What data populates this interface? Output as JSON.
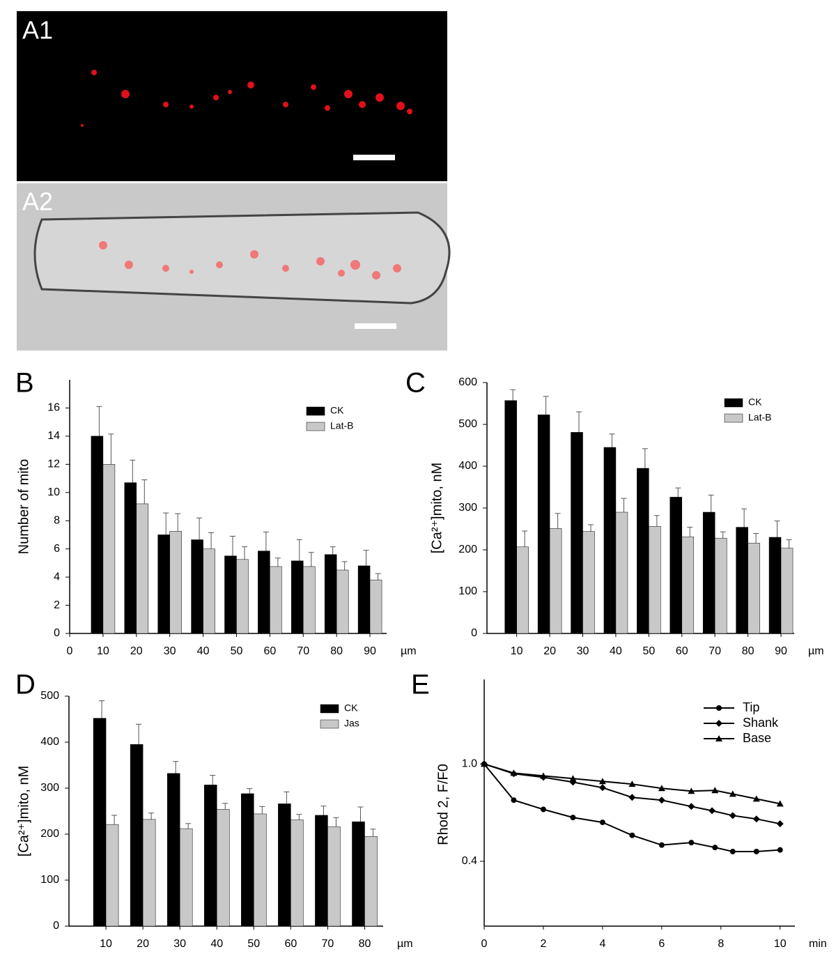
{
  "images": [
    {
      "label": "A1"
    },
    {
      "label": "A2"
    }
  ],
  "chart_data": [
    {
      "type": "bar",
      "label": "B",
      "ylabel": "Number of mito",
      "xlabel": "µm",
      "x": [
        10,
        20,
        30,
        40,
        50,
        60,
        70,
        80,
        90
      ],
      "xlim": [
        0,
        95
      ],
      "xticks": [
        0,
        10,
        20,
        30,
        40,
        50,
        60,
        70,
        80,
        90
      ],
      "ylim": [
        0,
        18
      ],
      "yticks": [
        0,
        2,
        4,
        6,
        8,
        10,
        12,
        14,
        16
      ],
      "series": [
        {
          "name": "CK",
          "color": "#000000",
          "values": [
            14,
            10.7,
            7.0,
            6.65,
            5.5,
            5.85,
            5.15,
            5.6,
            4.8
          ],
          "errors": [
            2.1,
            1.6,
            1.55,
            1.55,
            1.4,
            1.35,
            1.5,
            0.55,
            1.1
          ]
        },
        {
          "name": "Lat-B",
          "color": "#c8c8c8",
          "values": [
            12.0,
            9.2,
            7.25,
            6.0,
            5.25,
            4.75,
            4.75,
            4.5,
            3.8
          ],
          "errors": [
            2.15,
            1.7,
            1.25,
            1.15,
            0.9,
            0.6,
            1.0,
            0.6,
            0.45
          ]
        }
      ]
    },
    {
      "type": "bar",
      "label": "C",
      "ylabel": "[Ca²⁺]mito, nM",
      "xlabel": "µm",
      "x": [
        10,
        20,
        30,
        40,
        50,
        60,
        70,
        80,
        90
      ],
      "xlim": [
        1,
        94
      ],
      "xticks": [
        10,
        20,
        30,
        40,
        50,
        60,
        70,
        80,
        90
      ],
      "ylim": [
        0,
        600
      ],
      "yticks": [
        0,
        100,
        200,
        300,
        400,
        500,
        600
      ],
      "series": [
        {
          "name": "CK",
          "color": "#000000",
          "values": [
            557,
            523,
            481,
            445,
            395,
            326,
            290,
            254,
            230
          ],
          "errors": [
            26,
            44,
            49,
            32,
            47,
            22,
            41,
            44,
            39
          ]
        },
        {
          "name": "Lat-B",
          "color": "#c8c8c8",
          "values": [
            207,
            251,
            244,
            290,
            256,
            231,
            228,
            216,
            204
          ],
          "errors": [
            38,
            36,
            16,
            33,
            26,
            23,
            15,
            23,
            20
          ]
        }
      ]
    },
    {
      "type": "bar",
      "label": "D",
      "ylabel": "[Ca²⁺]mito, nM",
      "xlabel": "µm",
      "x": [
        10,
        20,
        30,
        40,
        50,
        60,
        70,
        80
      ],
      "xlim": [
        0,
        85
      ],
      "xticks": [
        10,
        20,
        30,
        40,
        50,
        60,
        70,
        80
      ],
      "ylim": [
        0,
        500
      ],
      "yticks": [
        0,
        100,
        200,
        300,
        400,
        500
      ],
      "series": [
        {
          "name": "CK",
          "color": "#000000",
          "values": [
            452,
            395,
            332,
            307,
            288,
            266,
            241,
            227
          ],
          "errors": [
            38,
            44,
            26,
            21,
            11,
            26,
            20,
            32
          ]
        },
        {
          "name": "Jas",
          "color": "#c8c8c8",
          "values": [
            221,
            232,
            212,
            254,
            244,
            231,
            216,
            195
          ],
          "errors": [
            20,
            14,
            11,
            13,
            16,
            12,
            20,
            16
          ]
        }
      ]
    },
    {
      "type": "line",
      "label": "E",
      "ylabel": "Rhod 2, F/F0",
      "xlabel": "min",
      "xlim": [
        0,
        10.5
      ],
      "xticks": [
        0,
        2,
        4,
        6,
        8,
        10
      ],
      "ylim": [
        0,
        1.5
      ],
      "yticks": [
        {
          "value": 1,
          "label": "1.0"
        },
        0.4
      ],
      "series": [
        {
          "name": "Tip",
          "color": "#000000",
          "marker": "circle",
          "x": [
            0,
            1,
            2,
            3,
            4,
            5,
            6,
            7,
            7.8,
            8.4,
            9.2,
            10
          ],
          "values": [
            1.0,
            0.777,
            0.72,
            0.67,
            0.64,
            0.56,
            0.5,
            0.515,
            0.485,
            0.46,
            0.46,
            0.47
          ]
        },
        {
          "name": "Shank",
          "color": "#000000",
          "marker": "diamond",
          "x": [
            0,
            1,
            2,
            3,
            4,
            5,
            6,
            7,
            7.7,
            8.4,
            9.2,
            10
          ],
          "values": [
            1.0,
            0.94,
            0.918,
            0.888,
            0.854,
            0.794,
            0.777,
            0.738,
            0.712,
            0.682,
            0.661,
            0.631
          ]
        },
        {
          "name": "Base",
          "color": "#000000",
          "marker": "triangle",
          "x": [
            0,
            1,
            2,
            3,
            4,
            5,
            6,
            7,
            7.8,
            8.4,
            9.2,
            10
          ],
          "values": [
            1.0,
            0.944,
            0.927,
            0.91,
            0.893,
            0.876,
            0.85,
            0.833,
            0.837,
            0.815,
            0.785,
            0.755
          ]
        }
      ]
    }
  ]
}
